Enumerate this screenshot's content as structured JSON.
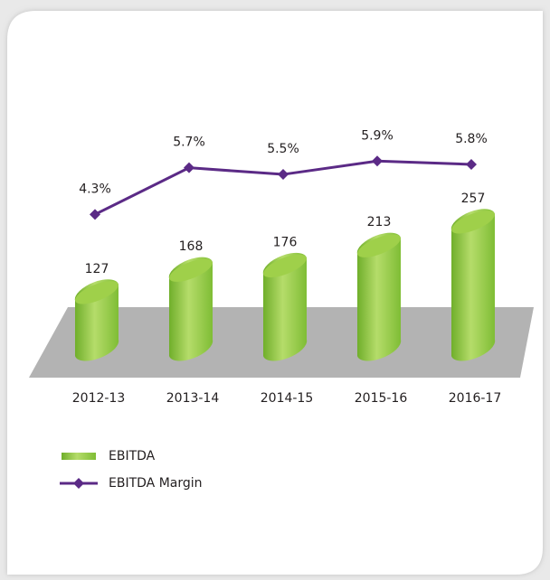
{
  "chart_data": {
    "type": "bar-line",
    "categories": [
      "2012-13",
      "2013-14",
      "2014-15",
      "2015-16",
      "2016-17"
    ],
    "series": [
      {
        "name": "EBITDA",
        "type": "bar",
        "color": "#8dc63f",
        "values": [
          127,
          168,
          176,
          213,
          257
        ]
      },
      {
        "name": "EBITDA Margin",
        "type": "line",
        "color": "#5b2a86",
        "values": [
          4.3,
          5.7,
          5.5,
          5.9,
          5.8
        ],
        "value_labels": [
          "4.3%",
          "5.7%",
          "5.5%",
          "5.9%",
          "5.8%"
        ]
      }
    ]
  }
}
